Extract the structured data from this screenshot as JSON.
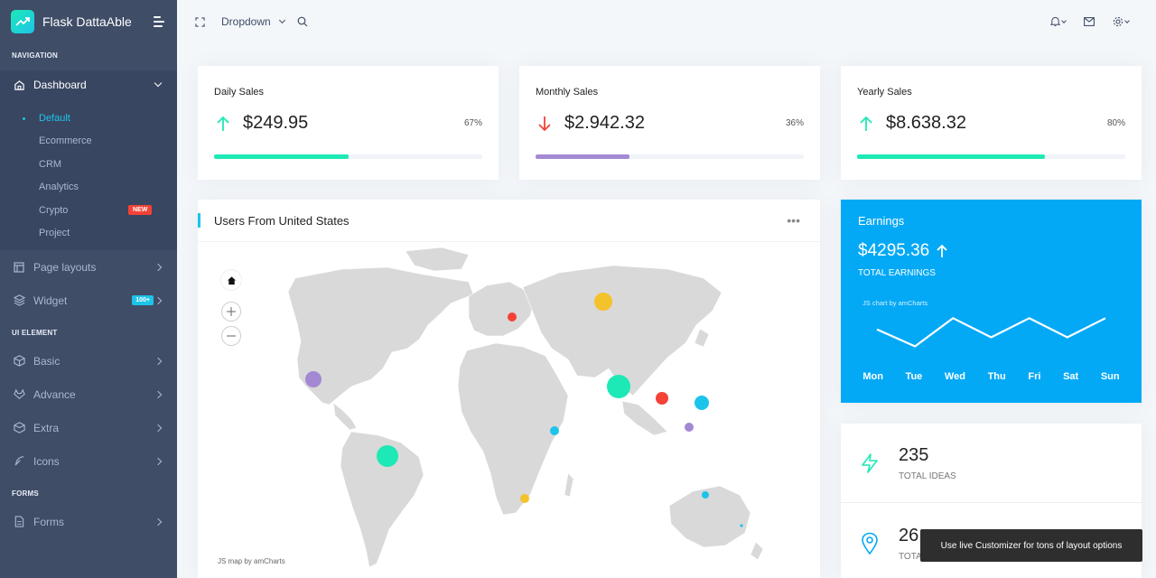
{
  "brand": {
    "name": "Flask DattaAble"
  },
  "sidebar": {
    "caption_navigation": "NAVIGATION",
    "dashboard": "Dashboard",
    "submenu": [
      "Default",
      "Ecommerce",
      "CRM",
      "Analytics",
      "Crypto",
      "Project"
    ],
    "crypto_badge": "NEW",
    "page_layouts": "Page layouts",
    "widget": "Widget",
    "widget_badge": "100+",
    "caption_ui": "UI ELEMENT",
    "basic": "Basic",
    "advance": "Advance",
    "extra": "Extra",
    "icons": "Icons",
    "caption_forms": "FORMS",
    "forms": "Forms"
  },
  "header": {
    "dropdown_label": "Dropdown"
  },
  "stats": [
    {
      "title": "Daily Sales",
      "value": "$249.95",
      "percent": "67%",
      "direction": "up",
      "progress": 0.5,
      "color": "#1de9b6"
    },
    {
      "title": "Monthly Sales",
      "value": "$2.942.32",
      "percent": "36%",
      "direction": "down",
      "progress": 0.35,
      "color": "#a389d4"
    },
    {
      "title": "Yearly Sales",
      "value": "$8.638.32",
      "percent": "80%",
      "direction": "up",
      "progress": 0.7,
      "color": "#1de9b6"
    }
  ],
  "map": {
    "title": "Users From United States",
    "more": "•••",
    "credit": "JS map by amCharts"
  },
  "earnings": {
    "title": "Earnings",
    "value": "$4295.36",
    "subtitle": "TOTAL EARNINGS",
    "credit": "JS chart by amCharts",
    "days": [
      "Mon",
      "Tue",
      "Wed",
      "Thu",
      "Fri",
      "Sat",
      "Sun"
    ],
    "values": [
      45,
      30,
      55,
      38,
      55,
      38,
      55
    ]
  },
  "ideas": {
    "value": "235",
    "label": "TOTAL IDEAS"
  },
  "locations": {
    "value": "26",
    "label": "TOTA"
  },
  "toast": {
    "text": "Use live Customizer for tons of layout options"
  },
  "colors": {
    "sidebar": "#3f4d67",
    "accent": "#1dc4e9",
    "earnings": "#04a9f5",
    "green": "#1de9b6",
    "red": "#f44236",
    "purple": "#a389d4"
  }
}
